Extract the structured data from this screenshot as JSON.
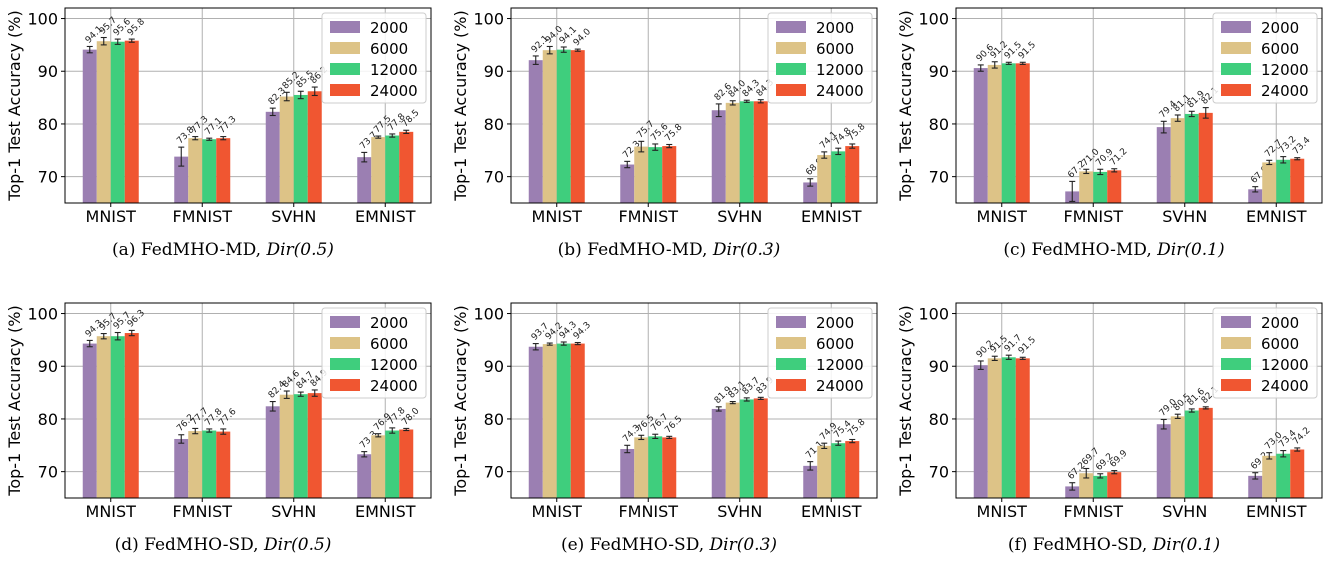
{
  "colors": {
    "2000": "#9b7fb2",
    "6000": "#ddc387",
    "12000": "#3fce7d",
    "24000": "#f05631"
  },
  "captions": [
    {
      "label": "(a) FedMHO-MD, ",
      "dir": "Dir(0.5)"
    },
    {
      "label": "(b) FedMHO-MD, ",
      "dir": "Dir(0.3)"
    },
    {
      "label": "(c) FedMHO-MD, ",
      "dir": "Dir(0.1)"
    },
    {
      "label": "(d) FedMHO-SD, ",
      "dir": "Dir(0.5)"
    },
    {
      "label": "(e) FedMHO-SD, ",
      "dir": "Dir(0.3)"
    },
    {
      "label": "(f) FedMHO-SD, ",
      "dir": "Dir(0.1)"
    }
  ],
  "chart_data": [
    {
      "type": "bar",
      "ylabel": "Top-1 Test Accuracy (%)",
      "ylim": [
        65,
        102
      ],
      "yticks": [
        70,
        80,
        90,
        100
      ],
      "grid": true,
      "legend": "top-right",
      "categories": [
        "MNIST",
        "FMNIST",
        "SVHN",
        "EMNIST"
      ],
      "series": [
        {
          "name": "2000",
          "values": [
            94.1,
            73.8,
            82.3,
            73.7
          ],
          "err": [
            0.6,
            1.8,
            0.7,
            0.9
          ]
        },
        {
          "name": "6000",
          "values": [
            95.7,
            77.3,
            85.2,
            77.5
          ],
          "err": [
            0.7,
            0.3,
            0.8,
            0.2
          ]
        },
        {
          "name": "12000",
          "values": [
            95.6,
            77.1,
            85.5,
            77.8
          ],
          "err": [
            0.5,
            0.2,
            0.7,
            0.3
          ]
        },
        {
          "name": "24000",
          "values": [
            95.8,
            77.3,
            86.2,
            78.5
          ],
          "err": [
            0.3,
            0.3,
            0.8,
            0.3
          ]
        }
      ]
    },
    {
      "type": "bar",
      "ylabel": "Top-1 Test Accuracy (%)",
      "ylim": [
        65,
        102
      ],
      "yticks": [
        70,
        80,
        90,
        100
      ],
      "grid": true,
      "legend": "top-right",
      "categories": [
        "MNIST",
        "FMNIST",
        "SVHN",
        "EMNIST"
      ],
      "series": [
        {
          "name": "2000",
          "values": [
            92.1,
            72.3,
            82.6,
            68.9
          ],
          "err": [
            0.8,
            0.6,
            1.2,
            0.7
          ]
        },
        {
          "name": "6000",
          "values": [
            94.0,
            75.7,
            84.0,
            74.1
          ],
          "err": [
            0.7,
            1.0,
            0.4,
            0.6
          ]
        },
        {
          "name": "12000",
          "values": [
            94.1,
            75.6,
            84.3,
            74.8
          ],
          "err": [
            0.5,
            0.6,
            0.2,
            0.6
          ]
        },
        {
          "name": "24000",
          "values": [
            94.0,
            75.8,
            84.3,
            75.8
          ],
          "err": [
            0.2,
            0.3,
            0.3,
            0.4
          ]
        }
      ]
    },
    {
      "type": "bar",
      "ylabel": "Top-1 Test Accuracy (%)",
      "ylim": [
        65,
        102
      ],
      "yticks": [
        70,
        80,
        90,
        100
      ],
      "grid": true,
      "legend": "top-right",
      "categories": [
        "MNIST",
        "FMNIST",
        "SVHN",
        "EMNIST"
      ],
      "series": [
        {
          "name": "2000",
          "values": [
            90.6,
            67.2,
            79.4,
            67.6
          ],
          "err": [
            0.6,
            1.9,
            1.1,
            0.5
          ]
        },
        {
          "name": "6000",
          "values": [
            91.2,
            71.0,
            81.1,
            72.7
          ],
          "err": [
            0.6,
            0.4,
            0.6,
            0.4
          ]
        },
        {
          "name": "12000",
          "values": [
            91.5,
            70.9,
            81.9,
            73.2
          ],
          "err": [
            0.2,
            0.5,
            0.5,
            0.6
          ]
        },
        {
          "name": "24000",
          "values": [
            91.5,
            71.2,
            82.1,
            73.4
          ],
          "err": [
            0.2,
            0.3,
            1.0,
            0.2
          ]
        }
      ]
    },
    {
      "type": "bar",
      "ylabel": "Top-1 Test Accuracy (%)",
      "ylim": [
        65,
        102
      ],
      "yticks": [
        70,
        80,
        90,
        100
      ],
      "grid": true,
      "legend": "top-right",
      "categories": [
        "MNIST",
        "FMNIST",
        "SVHN",
        "EMNIST"
      ],
      "series": [
        {
          "name": "2000",
          "values": [
            94.3,
            76.2,
            82.4,
            73.3
          ],
          "err": [
            0.6,
            0.8,
            0.9,
            0.5
          ]
        },
        {
          "name": "6000",
          "values": [
            95.7,
            77.7,
            84.6,
            76.9
          ],
          "err": [
            0.5,
            0.5,
            0.7,
            0.3
          ]
        },
        {
          "name": "12000",
          "values": [
            95.7,
            77.8,
            84.7,
            77.8
          ],
          "err": [
            0.7,
            0.3,
            0.4,
            0.5
          ]
        },
        {
          "name": "24000",
          "values": [
            96.3,
            77.6,
            84.9,
            78.0
          ],
          "err": [
            0.5,
            0.5,
            0.6,
            0.2
          ]
        }
      ]
    },
    {
      "type": "bar",
      "ylabel": "Top-1 Test Accuracy (%)",
      "ylim": [
        65,
        102
      ],
      "yticks": [
        70,
        80,
        90,
        100
      ],
      "grid": true,
      "legend": "top-right",
      "categories": [
        "MNIST",
        "FMNIST",
        "SVHN",
        "EMNIST"
      ],
      "series": [
        {
          "name": "2000",
          "values": [
            93.7,
            74.3,
            81.9,
            71.1
          ],
          "err": [
            0.6,
            0.7,
            0.4,
            0.8
          ]
        },
        {
          "name": "6000",
          "values": [
            94.2,
            76.5,
            83.1,
            74.9
          ],
          "err": [
            0.2,
            0.4,
            0.2,
            0.5
          ]
        },
        {
          "name": "12000",
          "values": [
            94.3,
            76.7,
            83.7,
            75.4
          ],
          "err": [
            0.3,
            0.4,
            0.3,
            0.4
          ]
        },
        {
          "name": "24000",
          "values": [
            94.3,
            76.5,
            83.9,
            75.8
          ],
          "err": [
            0.2,
            0.2,
            0.2,
            0.3
          ]
        }
      ]
    },
    {
      "type": "bar",
      "ylabel": "Top-1 Test Accuracy (%)",
      "ylim": [
        65,
        102
      ],
      "yticks": [
        70,
        80,
        90,
        100
      ],
      "grid": true,
      "legend": "top-right",
      "categories": [
        "MNIST",
        "FMNIST",
        "SVHN",
        "EMNIST"
      ],
      "series": [
        {
          "name": "2000",
          "values": [
            90.2,
            67.2,
            79.0,
            69.2
          ],
          "err": [
            0.8,
            0.7,
            0.9,
            0.6
          ]
        },
        {
          "name": "6000",
          "values": [
            91.5,
            69.7,
            80.5,
            73.0
          ],
          "err": [
            0.4,
            0.9,
            0.4,
            0.6
          ]
        },
        {
          "name": "12000",
          "values": [
            91.7,
            69.2,
            81.6,
            73.4
          ],
          "err": [
            0.4,
            0.4,
            0.3,
            0.6
          ]
        },
        {
          "name": "24000",
          "values": [
            91.5,
            69.9,
            82.1,
            74.2
          ],
          "err": [
            0.2,
            0.3,
            0.2,
            0.3
          ]
        }
      ]
    }
  ]
}
